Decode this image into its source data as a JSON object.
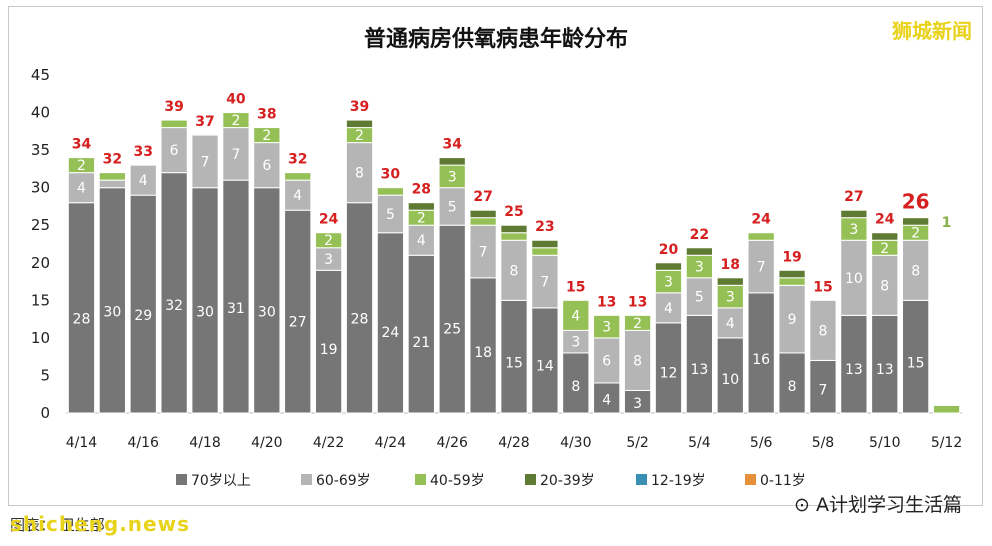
{
  "brand_top": "狮城新闻",
  "brand_bottom": "shicheng.news",
  "watermark": "A计划学习生活篇",
  "source_text": "图表：  卫生部",
  "colors": {
    "70+": "#767676",
    "60-69": "#b5b5b5",
    "40-59": "#95c055",
    "20-39": "#5f7a32",
    "12-19": "#3a8fb5",
    "0-11": "#e6913a",
    "total": "#d62020",
    "brand": "#e9d21a"
  },
  "chart_data": {
    "type": "bar",
    "stacked": true,
    "title": "普通病房供氧病患年龄分布",
    "ylim": [
      0,
      45
    ],
    "yticks": [
      0,
      5,
      10,
      15,
      20,
      25,
      30,
      35,
      40,
      45
    ],
    "grid": false,
    "legend_position": "bottom",
    "categories": [
      "4/14",
      "4/15",
      "4/16",
      "4/17",
      "4/18",
      "4/19",
      "4/20",
      "4/21",
      "4/22",
      "4/23",
      "4/24",
      "4/25",
      "4/26",
      "4/27",
      "4/28",
      "4/29",
      "4/30",
      "5/1",
      "5/2",
      "5/3",
      "5/4",
      "5/5",
      "5/6",
      "5/7",
      "5/8",
      "5/9",
      "5/10",
      "5/11",
      "5/12"
    ],
    "xtick_labels": [
      "4/14",
      "",
      "4/16",
      "",
      "4/18",
      "",
      "4/20",
      "",
      "4/22",
      "",
      "4/24",
      "",
      "4/26",
      "",
      "4/28",
      "",
      "4/30",
      "",
      "5/2",
      "",
      "5/4",
      "",
      "5/6",
      "",
      "5/8",
      "",
      "5/10",
      "",
      "5/12"
    ],
    "series": [
      {
        "name": "70岁以上",
        "key": "70+",
        "values": [
          28,
          30,
          29,
          32,
          30,
          31,
          30,
          27,
          19,
          28,
          24,
          21,
          25,
          18,
          15,
          14,
          8,
          4,
          3,
          12,
          13,
          10,
          16,
          8,
          7,
          13,
          13,
          15,
          0
        ]
      },
      {
        "name": "60-69岁",
        "key": "60-69",
        "values": [
          4,
          1,
          4,
          6,
          7,
          7,
          6,
          4,
          3,
          8,
          5,
          4,
          5,
          7,
          8,
          7,
          3,
          6,
          8,
          4,
          5,
          4,
          7,
          9,
          8,
          10,
          8,
          8,
          0
        ]
      },
      {
        "name": "40-59岁",
        "key": "40-59",
        "values": [
          2,
          1,
          0,
          1,
          0,
          2,
          2,
          1,
          2,
          2,
          1,
          2,
          3,
          1,
          1,
          1,
          4,
          3,
          2,
          3,
          3,
          3,
          1,
          1,
          0,
          3,
          2,
          2,
          1
        ]
      },
      {
        "name": "20-39岁",
        "key": "20-39",
        "values": [
          0,
          0,
          0,
          0,
          0,
          0,
          0,
          0,
          0,
          1,
          0,
          1,
          1,
          1,
          1,
          1,
          0,
          0,
          0,
          1,
          1,
          1,
          0,
          1,
          0,
          1,
          1,
          1,
          0
        ]
      },
      {
        "name": "12-19岁",
        "key": "12-19",
        "values": [
          0,
          0,
          0,
          0,
          0,
          0,
          0,
          0,
          0,
          0,
          0,
          0,
          0,
          0,
          0,
          0,
          0,
          0,
          0,
          0,
          0,
          0,
          0,
          0,
          0,
          0,
          0,
          0,
          0
        ]
      },
      {
        "name": "0-11岁",
        "key": "0-11",
        "values": [
          0,
          0,
          0,
          0,
          0,
          0,
          0,
          0,
          0,
          0,
          0,
          0,
          0,
          0,
          0,
          0,
          0,
          0,
          0,
          0,
          0,
          0,
          0,
          0,
          0,
          0,
          0,
          0,
          0
        ]
      }
    ],
    "totals": [
      34,
      32,
      33,
      39,
      37,
      40,
      38,
      32,
      24,
      39,
      30,
      28,
      34,
      27,
      25,
      23,
      15,
      13,
      13,
      20,
      22,
      18,
      24,
      19,
      15,
      27,
      24,
      26,
      null
    ],
    "annotation_extra": {
      "category": "5/12",
      "text": "1"
    }
  }
}
